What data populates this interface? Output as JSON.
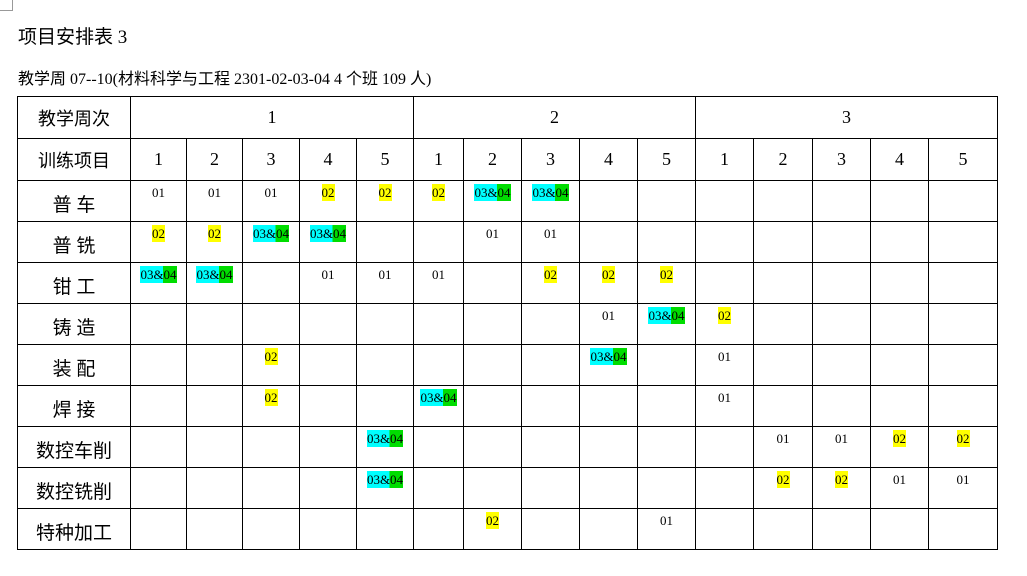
{
  "title": "项目安排表 3",
  "subtitle": "教学周 07--10(材料科学与工程 2301-02-03-04 4 个班 109 人)",
  "table": {
    "week_header": "教学周次",
    "weeks": [
      "1",
      "2",
      "3"
    ],
    "day_header": "训练项目",
    "days": [
      "1",
      "2",
      "3",
      "4",
      "5",
      "1",
      "2",
      "3",
      "4",
      "5",
      "1",
      "2",
      "3",
      "4",
      "5"
    ],
    "rows": [
      {
        "name": "普  车",
        "cells": [
          "01",
          "01",
          "01",
          "02",
          "02",
          "02",
          "03&04",
          "03&04",
          null,
          null,
          null,
          null,
          null,
          null,
          null
        ]
      },
      {
        "name": "普  铣",
        "cells": [
          "02",
          "02",
          "03&04",
          "03&04",
          null,
          null,
          "01",
          "01",
          null,
          null,
          null,
          null,
          null,
          null,
          null
        ]
      },
      {
        "name": "钳  工",
        "cells": [
          "03&04",
          "03&04",
          null,
          "01",
          "01",
          "01",
          null,
          "02",
          "02",
          "02",
          null,
          null,
          null,
          null,
          null
        ]
      },
      {
        "name": "铸  造",
        "cells": [
          null,
          null,
          null,
          null,
          null,
          null,
          null,
          null,
          "01",
          "03&04",
          "02",
          null,
          null,
          null,
          null
        ]
      },
      {
        "name": "装  配",
        "cells": [
          null,
          null,
          "02",
          null,
          null,
          null,
          null,
          null,
          "03&04",
          null,
          "01",
          null,
          null,
          null,
          null
        ]
      },
      {
        "name": "焊  接",
        "cells": [
          null,
          null,
          "02",
          null,
          null,
          "03&04",
          null,
          null,
          null,
          null,
          "01",
          null,
          null,
          null,
          null
        ]
      },
      {
        "name": "数控车削",
        "cells": [
          null,
          null,
          null,
          null,
          "03&04",
          null,
          null,
          null,
          null,
          null,
          null,
          "01",
          "01",
          "02",
          "02"
        ]
      },
      {
        "name": "数控铣削",
        "cells": [
          null,
          null,
          null,
          null,
          "03&04",
          null,
          null,
          null,
          null,
          null,
          null,
          "02",
          "02",
          "01",
          "01"
        ]
      },
      {
        "name": "特种加工",
        "cells": [
          null,
          null,
          null,
          null,
          null,
          null,
          "02",
          null,
          null,
          "01",
          null,
          null,
          null,
          null,
          null
        ]
      }
    ]
  }
}
